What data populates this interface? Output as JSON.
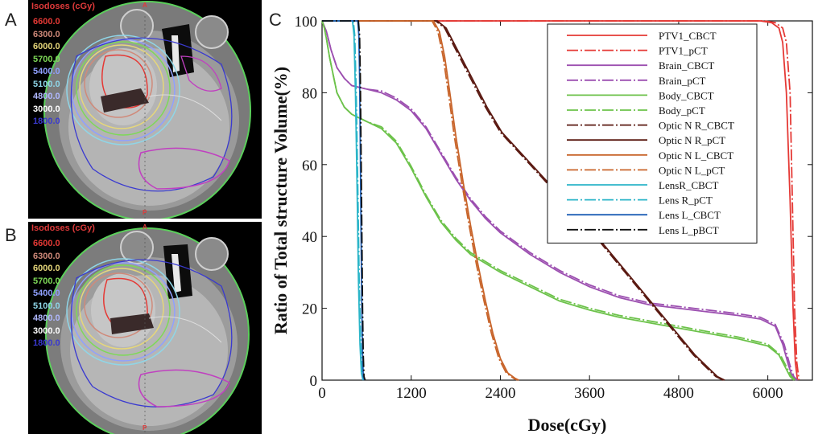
{
  "figure": {
    "panel_labels": [
      "A",
      "B",
      "C"
    ]
  },
  "ct_panels": [
    {
      "id": "A",
      "isodose_title": "Isodoses (cGy)",
      "orient_top": "A",
      "orient_bottom": "P",
      "isodoses": [
        {
          "label": "6600.0",
          "color": "#e53935"
        },
        {
          "label": "6300.0",
          "color": "#d08a7a"
        },
        {
          "label": "6000.0",
          "color": "#e6d77a"
        },
        {
          "label": "5700.0",
          "color": "#7ed957"
        },
        {
          "label": "5400.0",
          "color": "#8fa0ff"
        },
        {
          "label": "5100.0",
          "color": "#8fd6e8"
        },
        {
          "label": "4800.0",
          "color": "#b0b8ff"
        },
        {
          "label": "3000.0",
          "color": "#ffffff"
        },
        {
          "label": "1800.0",
          "color": "#3a3ad0"
        }
      ]
    },
    {
      "id": "B",
      "isodose_title": "Isodoses (cGy)",
      "orient_top": "A",
      "orient_bottom": "P",
      "isodoses": [
        {
          "label": "6600.0",
          "color": "#e53935"
        },
        {
          "label": "6300.0",
          "color": "#d08a7a"
        },
        {
          "label": "6000.0",
          "color": "#e6d77a"
        },
        {
          "label": "5700.0",
          "color": "#7ed957"
        },
        {
          "label": "5400.0",
          "color": "#8fa0ff"
        },
        {
          "label": "5100.0",
          "color": "#8fd6e8"
        },
        {
          "label": "4800.0",
          "color": "#b0b8ff"
        },
        {
          "label": "3000.0",
          "color": "#ffffff"
        },
        {
          "label": "1800.0",
          "color": "#3a3ad0"
        }
      ]
    }
  ],
  "chart_data": {
    "type": "line",
    "title": "",
    "xlabel": "Dose(cGy)",
    "ylabel": "Ratio of Total structure  Volume(%)",
    "xlim": [
      0,
      6600
    ],
    "ylim": [
      0,
      100
    ],
    "xticks": [
      0,
      1200,
      2400,
      3600,
      4800,
      6000
    ],
    "yticks": [
      0,
      20,
      40,
      60,
      80,
      100
    ],
    "legend_position": "top-right",
    "series": [
      {
        "name": "PTV1_CBCT",
        "color": "#e53935",
        "dash": "solid",
        "x": [
          0,
          5900,
          6050,
          6150,
          6200,
          6250,
          6300,
          6340,
          6370,
          6400
        ],
        "y": [
          100,
          100,
          99.5,
          98,
          94,
          80,
          50,
          20,
          5,
          0
        ]
      },
      {
        "name": "PTV1_pCT",
        "color": "#e53935",
        "dash": "dashdot",
        "x": [
          0,
          5950,
          6100,
          6200,
          6250,
          6300,
          6330,
          6360,
          6390,
          6420
        ],
        "y": [
          100,
          100,
          99.5,
          98,
          94,
          80,
          50,
          20,
          5,
          0
        ]
      },
      {
        "name": "Brain_CBCT",
        "color": "#9c4fb0",
        "dash": "solid",
        "x": [
          0,
          60,
          120,
          200,
          300,
          400,
          600,
          800,
          1000,
          1200,
          1400,
          1600,
          1800,
          2000,
          2200,
          2400,
          2800,
          3200,
          3600,
          4000,
          4400,
          4800,
          5200,
          5600,
          5900,
          6100,
          6200,
          6280,
          6330,
          6380
        ],
        "y": [
          100,
          97,
          92,
          87,
          84,
          82,
          81,
          80,
          78,
          75,
          70,
          63,
          56,
          50,
          45,
          41,
          35,
          30,
          26,
          23,
          21,
          20,
          19,
          18,
          17,
          15,
          10,
          4,
          1,
          0
        ]
      },
      {
        "name": "Brain_pCT",
        "color": "#9c4fb0",
        "dash": "dashdot",
        "x": [
          0,
          60,
          120,
          200,
          300,
          400,
          600,
          800,
          1000,
          1200,
          1400,
          1600,
          1800,
          2000,
          2200,
          2400,
          2800,
          3200,
          3600,
          4000,
          4400,
          4800,
          5200,
          5600,
          5900,
          6100,
          6220,
          6300,
          6350,
          6400
        ],
        "y": [
          100,
          97,
          92,
          87,
          84,
          82,
          81,
          80.5,
          78.5,
          75.5,
          70.5,
          63.5,
          56.5,
          50.5,
          45.5,
          41.5,
          35.5,
          30.5,
          26.5,
          23.5,
          21.5,
          20.5,
          19.5,
          18.5,
          17.5,
          15.5,
          10,
          4,
          1,
          0
        ]
      },
      {
        "name": "Body_CBCT",
        "color": "#6cc24a",
        "dash": "solid",
        "x": [
          0,
          30,
          60,
          100,
          150,
          200,
          300,
          400,
          500,
          600,
          800,
          1000,
          1200,
          1400,
          1600,
          1800,
          2000,
          2400,
          2800,
          3200,
          3600,
          4000,
          4400,
          4800,
          5200,
          5600,
          6000,
          6150,
          6250,
          6300,
          6350
        ],
        "y": [
          100,
          98,
          95,
          90,
          85,
          80,
          76,
          74,
          73,
          72,
          70,
          66,
          59,
          51,
          44,
          39,
          35,
          30,
          26,
          22,
          19.5,
          17.5,
          16,
          14.5,
          13,
          11.5,
          9.5,
          7,
          3,
          1,
          0
        ]
      },
      {
        "name": "Body_pCT",
        "color": "#6cc24a",
        "dash": "dashdot",
        "x": [
          0,
          30,
          60,
          100,
          150,
          200,
          300,
          400,
          500,
          600,
          800,
          1000,
          1200,
          1400,
          1600,
          1800,
          2000,
          2400,
          2800,
          3200,
          3600,
          4000,
          4400,
          4800,
          5200,
          5600,
          6000,
          6170,
          6270,
          6320,
          6370
        ],
        "y": [
          100,
          98,
          95,
          90,
          85,
          80,
          76,
          74,
          73,
          72,
          70.5,
          66.5,
          59.5,
          51.5,
          44.5,
          39.5,
          35.5,
          30.5,
          26.5,
          22.5,
          20,
          18,
          16.5,
          15,
          13.5,
          12,
          10,
          7,
          3,
          1,
          0
        ]
      },
      {
        "name": "Optic N R_CBCT",
        "color": "#5b1a12",
        "dash": "dashdot",
        "x": [
          0,
          1530,
          1650,
          1750,
          1850,
          2000,
          2200,
          2400,
          2800,
          3200,
          3600,
          4000,
          4400,
          4800,
          5000,
          5200,
          5300,
          5400
        ],
        "y": [
          100,
          100,
          98,
          94,
          90,
          84,
          76,
          69,
          60,
          51,
          42,
          32,
          22,
          12,
          7,
          3,
          1,
          0
        ]
      },
      {
        "name": "Optic N R_pCT",
        "color": "#5b1a12",
        "dash": "solid",
        "x": [
          0,
          1550,
          1670,
          1770,
          1870,
          2020,
          2220,
          2420,
          2820,
          3220,
          3620,
          4020,
          4420,
          4820,
          5020,
          5220,
          5320,
          5420
        ],
        "y": [
          100,
          100,
          98,
          94,
          90,
          84,
          76,
          69,
          60,
          51,
          42,
          32,
          22,
          12,
          7,
          3,
          1,
          0
        ]
      },
      {
        "name": "Optic N L_CBCT",
        "color": "#c8642a",
        "dash": "solid",
        "x": [
          0,
          1500,
          1580,
          1650,
          1720,
          1800,
          1900,
          2000,
          2100,
          2200,
          2300,
          2400,
          2500,
          2600,
          2650
        ],
        "y": [
          100,
          100,
          97,
          90,
          80,
          68,
          55,
          43,
          32,
          22,
          13,
          6,
          2,
          0.5,
          0
        ]
      },
      {
        "name": "Optic N L_pCT",
        "color": "#c8642a",
        "dash": "dashdot",
        "x": [
          0,
          1480,
          1560,
          1630,
          1700,
          1780,
          1880,
          1980,
          2080,
          2180,
          2280,
          2380,
          2480,
          2580,
          2630
        ],
        "y": [
          100,
          100,
          97,
          90,
          80,
          68,
          55,
          43,
          32,
          22,
          13,
          6,
          2,
          0.5,
          0
        ]
      },
      {
        "name": "LensR_CBCT",
        "color": "#2bb5c8",
        "dash": "solid",
        "x": [
          0,
          410,
          430,
          450,
          470,
          490,
          510,
          530,
          550
        ],
        "y": [
          100,
          100,
          96,
          80,
          55,
          28,
          10,
          2,
          0
        ]
      },
      {
        "name": "Lens R_pCT",
        "color": "#2bb5c8",
        "dash": "dashdot",
        "x": [
          0,
          420,
          440,
          460,
          480,
          500,
          520,
          540,
          560
        ],
        "y": [
          100,
          100,
          96,
          80,
          55,
          28,
          10,
          2,
          0
        ]
      },
      {
        "name": "Lens L_CBCT",
        "color": "#1f5fb5",
        "dash": "solid",
        "x": [
          0,
          480,
          495,
          505,
          515,
          525,
          535,
          545,
          555,
          570
        ],
        "y": [
          100,
          100,
          96,
          85,
          65,
          42,
          20,
          7,
          1,
          0
        ]
      },
      {
        "name": "Lens L_pBCT",
        "color": "#111111",
        "dash": "dashdot",
        "x": [
          0,
          490,
          505,
          515,
          525,
          535,
          545,
          555,
          565,
          580
        ],
        "y": [
          100,
          100,
          96,
          85,
          65,
          42,
          20,
          7,
          1,
          0
        ]
      }
    ]
  }
}
